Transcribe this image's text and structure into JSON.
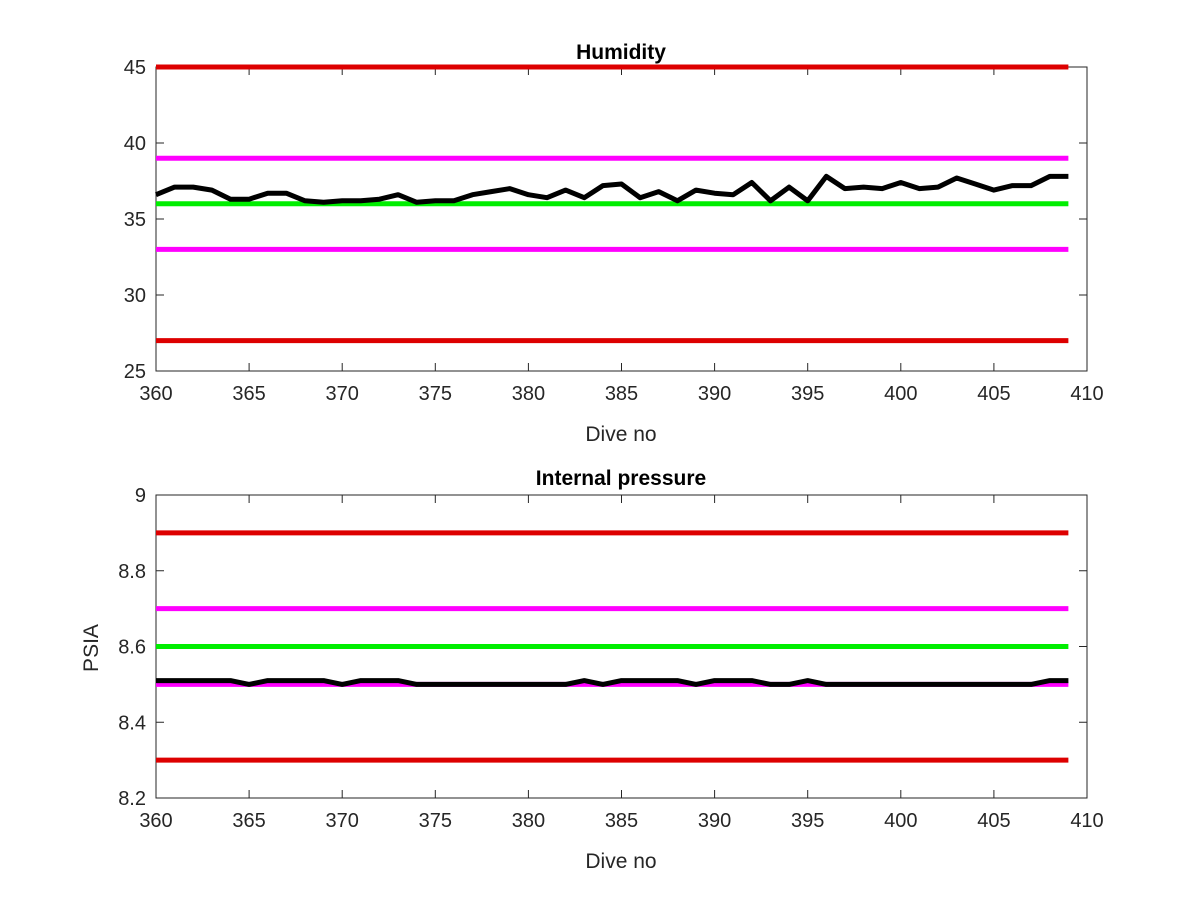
{
  "chart_data": [
    {
      "type": "line",
      "title": "Humidity",
      "xlabel": "Dive no",
      "ylabel": "",
      "xlim": [
        360,
        410
      ],
      "ylim": [
        25,
        45
      ],
      "xticks": [
        360,
        365,
        370,
        375,
        380,
        385,
        390,
        395,
        400,
        405,
        410
      ],
      "yticks": [
        25,
        30,
        35,
        40,
        45
      ],
      "grid": false,
      "x": [
        360,
        361,
        362,
        363,
        364,
        365,
        366,
        367,
        368,
        369,
        370,
        371,
        372,
        373,
        374,
        375,
        376,
        377,
        378,
        379,
        380,
        381,
        382,
        383,
        384,
        385,
        386,
        387,
        388,
        389,
        390,
        391,
        392,
        393,
        394,
        395,
        396,
        397,
        398,
        399,
        400,
        401,
        402,
        403,
        404,
        405,
        406,
        407,
        408,
        409
      ],
      "series": [
        {
          "color": "#000000",
          "kind": "data",
          "values": [
            36.6,
            37.1,
            37.1,
            36.9,
            36.3,
            36.3,
            36.7,
            36.7,
            36.2,
            36.1,
            36.2,
            36.2,
            36.3,
            36.6,
            36.1,
            36.2,
            36.2,
            36.6,
            36.8,
            37.0,
            36.6,
            36.4,
            36.9,
            36.4,
            37.2,
            37.3,
            36.4,
            36.8,
            36.2,
            36.9,
            36.7,
            36.6,
            37.4,
            36.2,
            37.1,
            36.2,
            37.8,
            37.0,
            37.1,
            37.0,
            37.4,
            37.0,
            37.1,
            37.7,
            37.3,
            36.9,
            37.2,
            37.2,
            37.8,
            37.8
          ]
        },
        {
          "color": "#dd0000",
          "kind": "hline",
          "y": 45
        },
        {
          "color": "#ff00ff",
          "kind": "hline",
          "y": 39
        },
        {
          "color": "#00ee00",
          "kind": "hline",
          "y": 36
        },
        {
          "color": "#ff00ff",
          "kind": "hline",
          "y": 33
        },
        {
          "color": "#dd0000",
          "kind": "hline",
          "y": 27
        }
      ]
    },
    {
      "type": "line",
      "title": "Internal pressure",
      "xlabel": "Dive no",
      "ylabel": "PSIA",
      "xlim": [
        360,
        410
      ],
      "ylim": [
        8.2,
        9
      ],
      "xticks": [
        360,
        365,
        370,
        375,
        380,
        385,
        390,
        395,
        400,
        405,
        410
      ],
      "yticks": [
        8.2,
        8.4,
        8.6,
        8.8,
        9
      ],
      "ytick_labels": [
        "8.2",
        "8.4",
        "8.6",
        "8.8",
        "9"
      ],
      "grid": false,
      "x": [
        360,
        361,
        362,
        363,
        364,
        365,
        366,
        367,
        368,
        369,
        370,
        371,
        372,
        373,
        374,
        375,
        376,
        377,
        378,
        379,
        380,
        381,
        382,
        383,
        384,
        385,
        386,
        387,
        388,
        389,
        390,
        391,
        392,
        393,
        394,
        395,
        396,
        397,
        398,
        399,
        400,
        401,
        402,
        403,
        404,
        405,
        406,
        407,
        408,
        409
      ],
      "series": [
        {
          "color": "#000000",
          "kind": "data",
          "values": [
            8.51,
            8.51,
            8.51,
            8.51,
            8.51,
            8.5,
            8.51,
            8.51,
            8.51,
            8.51,
            8.5,
            8.51,
            8.51,
            8.51,
            8.5,
            8.5,
            8.5,
            8.5,
            8.5,
            8.5,
            8.5,
            8.5,
            8.5,
            8.51,
            8.5,
            8.51,
            8.51,
            8.51,
            8.51,
            8.5,
            8.51,
            8.51,
            8.51,
            8.5,
            8.5,
            8.51,
            8.5,
            8.5,
            8.5,
            8.5,
            8.5,
            8.5,
            8.5,
            8.5,
            8.5,
            8.5,
            8.5,
            8.5,
            8.51,
            8.51
          ]
        },
        {
          "color": "#dd0000",
          "kind": "hline",
          "y": 8.9
        },
        {
          "color": "#ff00ff",
          "kind": "hline",
          "y": 8.7
        },
        {
          "color": "#00ee00",
          "kind": "hline",
          "y": 8.6
        },
        {
          "color": "#ff00ff",
          "kind": "hline",
          "y": 8.5
        },
        {
          "color": "#dd0000",
          "kind": "hline",
          "y": 8.3
        }
      ]
    }
  ]
}
